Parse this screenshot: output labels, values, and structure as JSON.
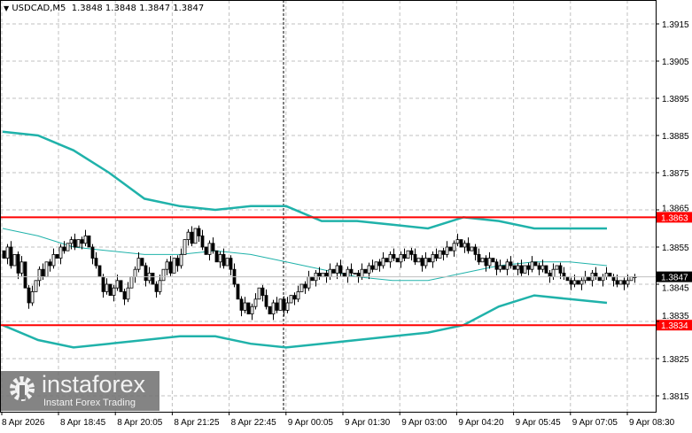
{
  "header": {
    "symbol_info": "USDCAD,M5  1.3848 1.3848 1.3847 1.3847",
    "menu_icon": "triangle-down-icon"
  },
  "watermark": {
    "brand": "instaforex",
    "tagline": "Instant Forex Trading",
    "icon": "gear-icon"
  },
  "colors": {
    "bands": "#20b2aa",
    "levels": "#ff0000",
    "candles": "#000000",
    "grid": "#c0c0c0"
  },
  "chart_data": {
    "type": "candlestick",
    "timeframe": "M5",
    "ylim": [
      1.381,
      1.392
    ],
    "grid": true,
    "y_ticks": [
      "1.3915",
      "1.3905",
      "1.3895",
      "1.3885",
      "1.3875",
      "1.3865",
      "1.3855",
      "1.3845",
      "1.3835",
      "1.3825",
      "1.3815"
    ],
    "x_ticks": [
      "8 Apr 2026",
      "8 Apr 18:45",
      "8 Apr 20:05",
      "8 Apr 21:25",
      "8 Apr 22:45",
      "9 Apr 00:05",
      "9 Apr 01:30",
      "9 Apr 03:00",
      "9 Apr 04:20",
      "9 Apr 05:45",
      "9 Apr 07:05",
      "9 Apr 08:30"
    ],
    "current_price": "1.3847",
    "levels": [
      {
        "label": "1.3863",
        "value": 1.3863
      },
      {
        "label": "1.3834",
        "value": 1.3834
      }
    ],
    "closes": [
      1.3852,
      1.3855,
      1.385,
      1.3853,
      1.3848,
      1.3851,
      1.3844,
      1.384,
      1.3843,
      1.3846,
      1.3849,
      1.3847,
      1.3851,
      1.385,
      1.3853,
      1.3852,
      1.3855,
      1.3854,
      1.3856,
      1.3857,
      1.3855,
      1.3857,
      1.3856,
      1.3858,
      1.3855,
      1.3852,
      1.385,
      1.3847,
      1.3843,
      1.3845,
      1.3842,
      1.3844,
      1.3846,
      1.3843,
      1.3841,
      1.3844,
      1.3847,
      1.3849,
      1.3852,
      1.385,
      1.3846,
      1.3848,
      1.3845,
      1.3843,
      1.3846,
      1.3849,
      1.3851,
      1.3848,
      1.3852,
      1.385,
      1.3853,
      1.3857,
      1.3859,
      1.3856,
      1.386,
      1.3858,
      1.3855,
      1.3853,
      1.3856,
      1.3854,
      1.3851,
      1.3853,
      1.385,
      1.3852,
      1.3849,
      1.3845,
      1.3841,
      1.3838,
      1.384,
      1.3837,
      1.3839,
      1.3841,
      1.3844,
      1.3842,
      1.3839,
      1.3837,
      1.384,
      1.3838,
      1.3841,
      1.3838,
      1.384,
      1.3842,
      1.3841,
      1.3843,
      1.3845,
      1.3844,
      1.3847,
      1.3846,
      1.3848,
      1.3847,
      1.3848,
      1.3847,
      1.3849,
      1.3848,
      1.385,
      1.3848,
      1.3847,
      1.3849,
      1.3848,
      1.3848,
      1.3847,
      1.3849,
      1.3848,
      1.385,
      1.3849,
      1.3851,
      1.385,
      1.3852,
      1.3851,
      1.3853,
      1.3852,
      1.3851,
      1.3853,
      1.3852,
      1.3854,
      1.3853,
      1.3851,
      1.3852,
      1.385,
      1.3852,
      1.3851,
      1.3853,
      1.3852,
      1.3854,
      1.3853,
      1.3855,
      1.3854,
      1.3856,
      1.3857,
      1.3855,
      1.3856,
      1.3854,
      1.3855,
      1.3853,
      1.3851,
      1.3852,
      1.385,
      1.3852,
      1.3851,
      1.3849,
      1.385,
      1.3849,
      1.3851,
      1.385,
      1.3849,
      1.385,
      1.3848,
      1.385,
      1.3849,
      1.3851,
      1.385,
      1.3849,
      1.385,
      1.3848,
      1.3847,
      1.3849,
      1.385,
      1.3848,
      1.3847,
      1.3846,
      1.3845,
      1.3846,
      1.3845,
      1.3846,
      1.3847,
      1.3846,
      1.3848,
      1.3847,
      1.3846,
      1.3847,
      1.3848,
      1.3847,
      1.3846,
      1.3845,
      1.3846,
      1.3845,
      1.3846,
      1.3847,
      1.3847
    ],
    "bollinger": {
      "upper": [
        1.3886,
        1.3885,
        1.3881,
        1.3875,
        1.3868,
        1.3866,
        1.3865,
        1.3866,
        1.3866,
        1.3862,
        1.3862,
        1.3861,
        1.386,
        1.3863,
        1.3862,
        1.386,
        1.386,
        1.386
      ],
      "middle": [
        1.386,
        1.3858,
        1.3855,
        1.3854,
        1.3853,
        1.3853,
        1.3854,
        1.3853,
        1.3851,
        1.3849,
        1.3847,
        1.3846,
        1.3846,
        1.3848,
        1.385,
        1.3851,
        1.3851,
        1.385
      ],
      "lower": [
        1.3834,
        1.383,
        1.3828,
        1.3829,
        1.383,
        1.3831,
        1.3831,
        1.3829,
        1.3828,
        1.3829,
        1.383,
        1.3831,
        1.3832,
        1.3834,
        1.3839,
        1.3842,
        1.3841,
        1.384
      ]
    }
  }
}
